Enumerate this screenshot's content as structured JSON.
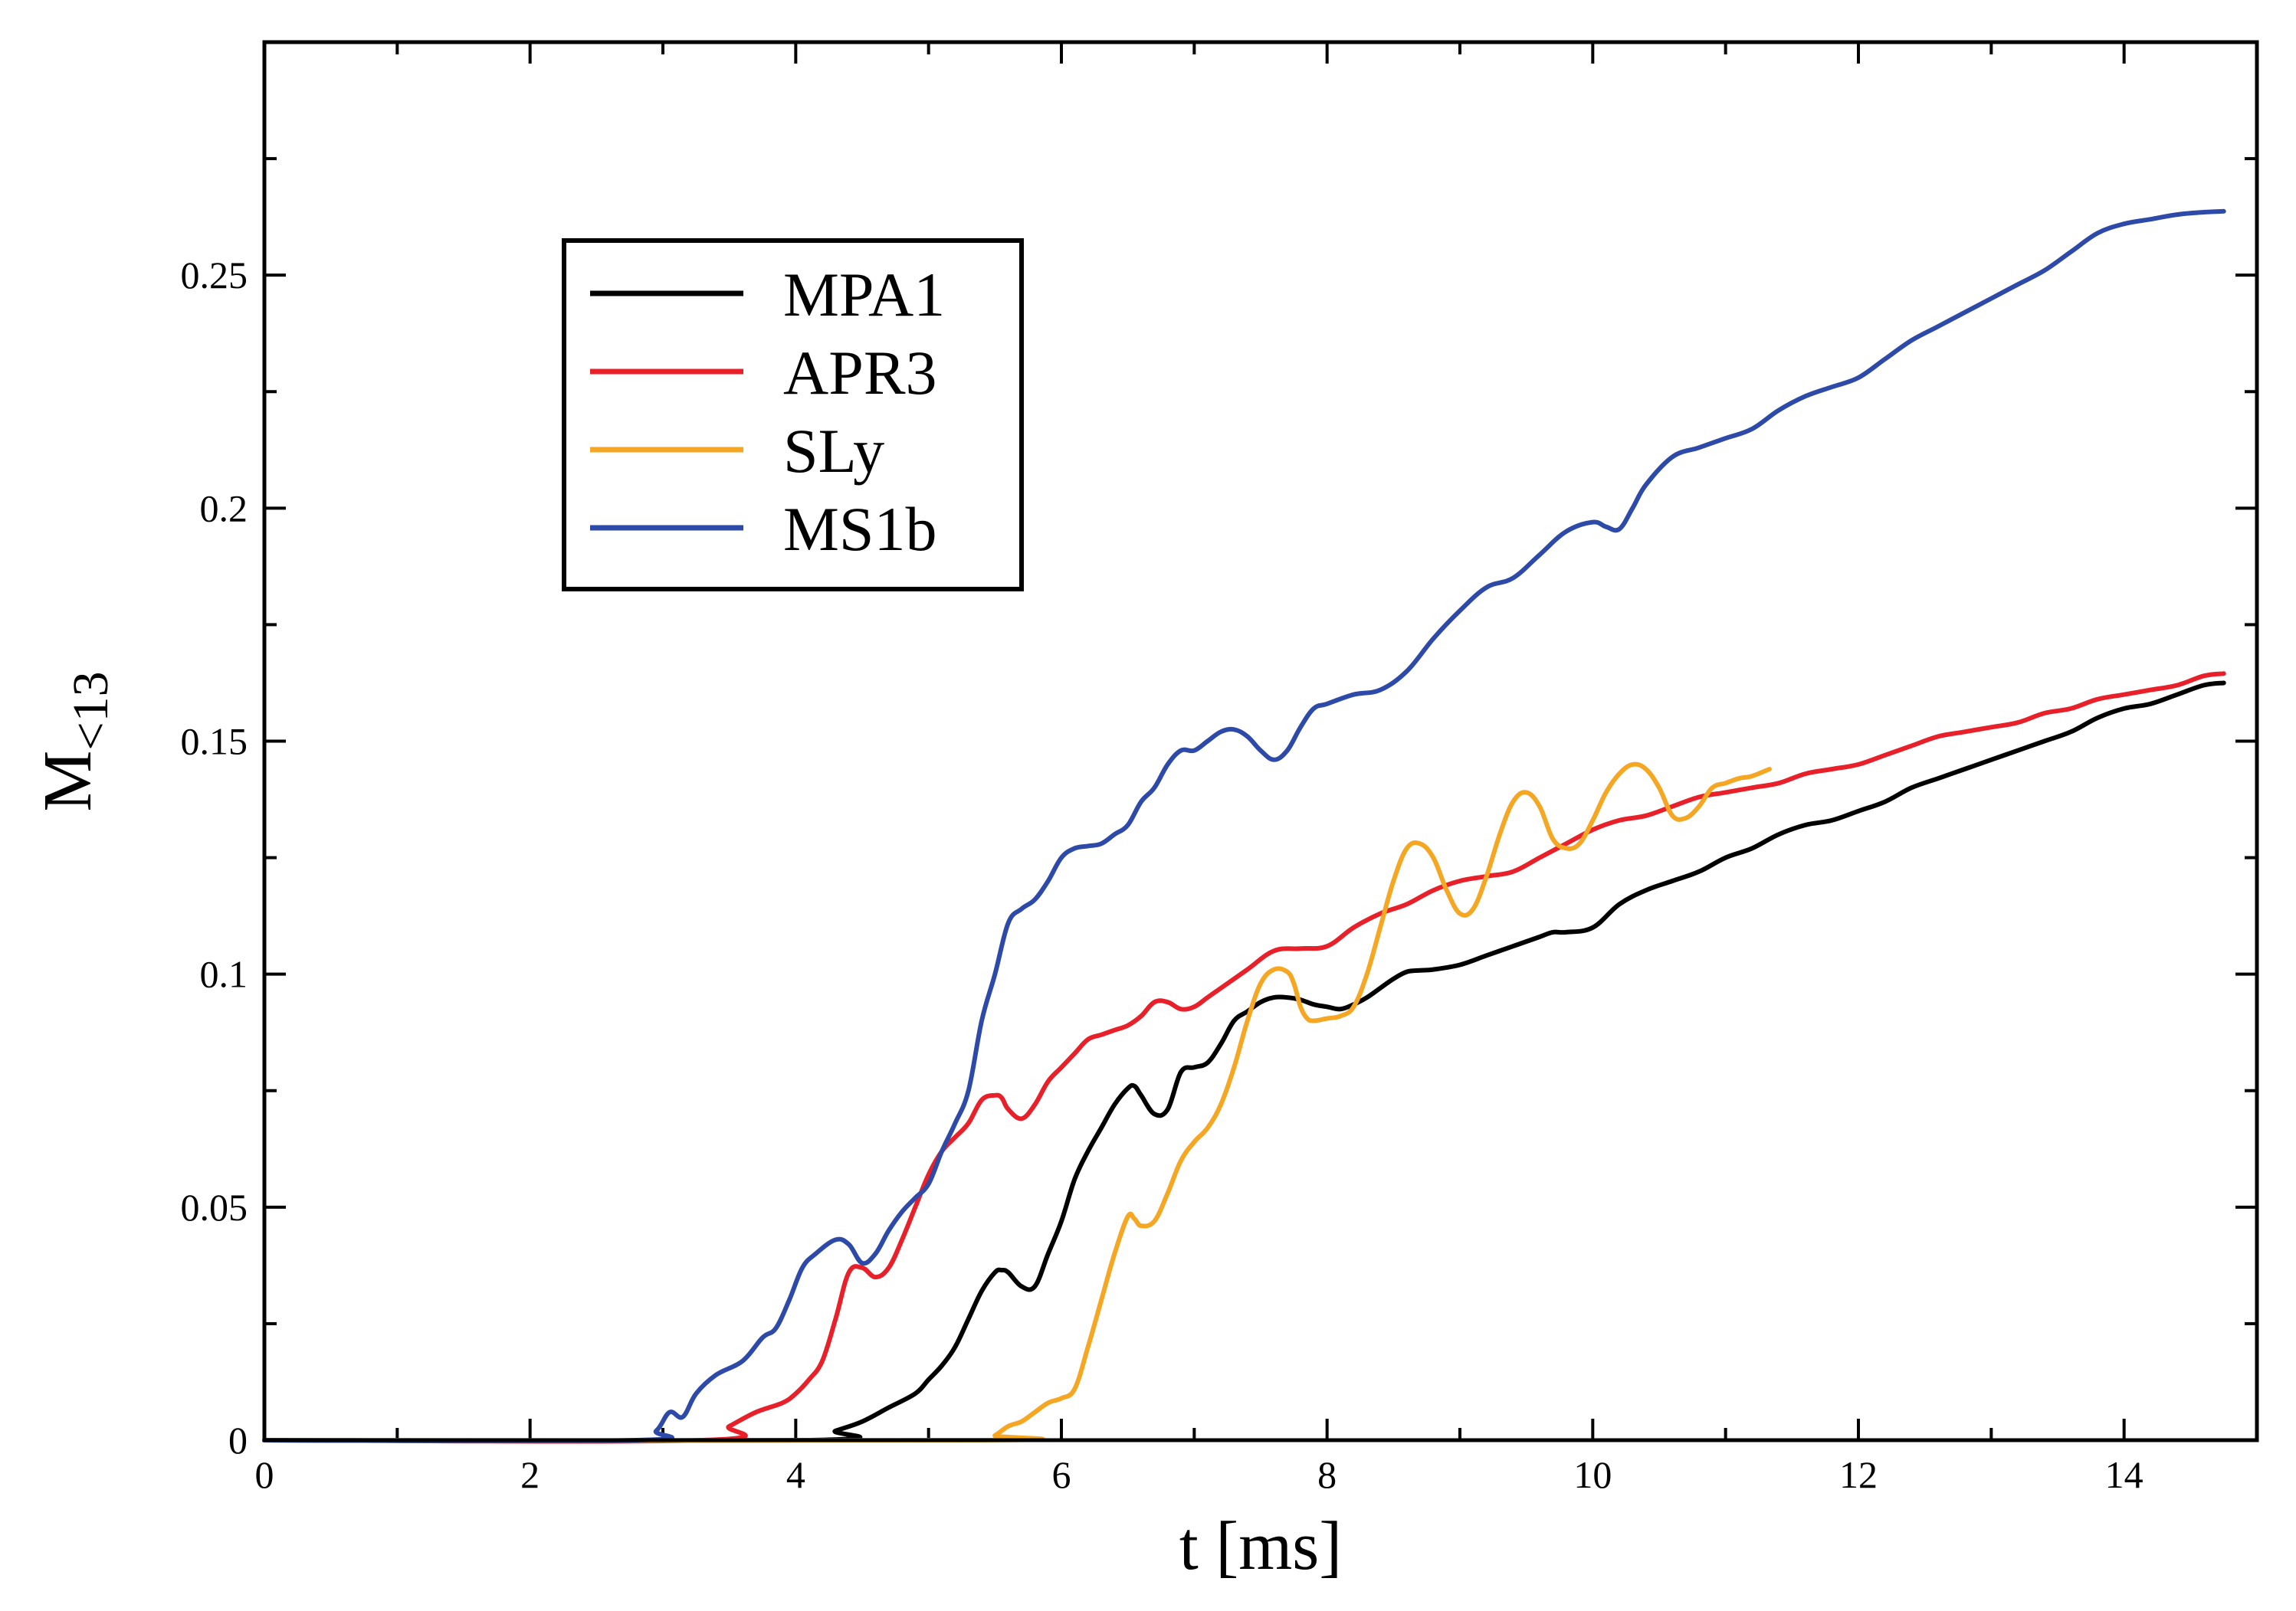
{
  "chart_data": {
    "type": "line",
    "title": "",
    "xlabel": "t [ms]",
    "ylabel": "M",
    "ylabel_subscript": "<13",
    "xlim": [
      0,
      15
    ],
    "ylim": [
      0,
      0.3
    ],
    "xticks": [
      0,
      2,
      4,
      6,
      8,
      10,
      12,
      14
    ],
    "xtick_labels": [
      "0",
      "2",
      "4",
      "6",
      "8",
      "10",
      "12",
      "14"
    ],
    "yticks": [
      0,
      0.05,
      0.1,
      0.15,
      0.2,
      0.25
    ],
    "ytick_labels": [
      "0",
      "0.05",
      "0.1",
      "0.15",
      "0.2",
      "0.25"
    ],
    "grid": false,
    "legend_position": "top-left",
    "series": [
      {
        "name": "MPA1",
        "color": "#000000",
        "x": [
          0,
          4.1,
          4.3,
          4.5,
          4.7,
          4.9,
          5.0,
          5.1,
          5.2,
          5.3,
          5.4,
          5.5,
          5.55,
          5.6,
          5.7,
          5.8,
          5.9,
          6.0,
          6.1,
          6.2,
          6.3,
          6.4,
          6.5,
          6.55,
          6.6,
          6.7,
          6.8,
          6.9,
          7.0,
          7.1,
          7.2,
          7.3,
          7.4,
          7.5,
          7.6,
          7.7,
          7.8,
          7.9,
          8.0,
          8.1,
          8.2,
          8.3,
          8.4,
          8.5,
          8.6,
          8.7,
          8.8,
          9.0,
          9.2,
          9.4,
          9.6,
          9.7,
          9.8,
          10.0,
          10.2,
          10.4,
          10.6,
          10.8,
          11.0,
          11.2,
          11.4,
          11.6,
          11.8,
          12.0,
          12.2,
          12.4,
          12.6,
          12.8,
          13.0,
          13.2,
          13.4,
          13.6,
          13.8,
          14.0,
          14.2,
          14.4,
          14.6,
          14.75
        ],
        "y": [
          0,
          0,
          0.002,
          0.004,
          0.007,
          0.01,
          0.013,
          0.016,
          0.02,
          0.026,
          0.032,
          0.036,
          0.0365,
          0.036,
          0.033,
          0.033,
          0.04,
          0.047,
          0.056,
          0.062,
          0.067,
          0.072,
          0.0755,
          0.076,
          0.074,
          0.07,
          0.071,
          0.079,
          0.08,
          0.081,
          0.085,
          0.09,
          0.092,
          0.094,
          0.095,
          0.095,
          0.0945,
          0.0935,
          0.093,
          0.0925,
          0.0935,
          0.095,
          0.097,
          0.099,
          0.1005,
          0.1008,
          0.101,
          0.102,
          0.104,
          0.106,
          0.108,
          0.109,
          0.109,
          0.11,
          0.115,
          0.118,
          0.12,
          0.122,
          0.125,
          0.127,
          0.13,
          0.132,
          0.133,
          0.135,
          0.137,
          0.14,
          0.142,
          0.144,
          0.146,
          0.148,
          0.15,
          0.152,
          0.155,
          0.157,
          0.158,
          0.16,
          0.162,
          0.1625
        ]
      },
      {
        "name": "APR3",
        "color": "#e8202a",
        "x": [
          0,
          3.3,
          3.5,
          3.7,
          3.9,
          4.0,
          4.1,
          4.2,
          4.3,
          4.4,
          4.5,
          4.6,
          4.7,
          4.8,
          4.9,
          5.0,
          5.1,
          5.2,
          5.3,
          5.4,
          5.5,
          5.55,
          5.6,
          5.7,
          5.8,
          5.9,
          6.0,
          6.1,
          6.2,
          6.3,
          6.4,
          6.5,
          6.6,
          6.7,
          6.8,
          6.9,
          7.0,
          7.1,
          7.2,
          7.4,
          7.6,
          7.8,
          8.0,
          8.2,
          8.4,
          8.6,
          8.8,
          9.0,
          9.2,
          9.4,
          9.6,
          9.8,
          10.0,
          10.2,
          10.4,
          10.6,
          10.8,
          11.0,
          11.2,
          11.4,
          11.6,
          11.8,
          12.0,
          12.2,
          12.4,
          12.6,
          12.8,
          13.0,
          13.2,
          13.4,
          13.6,
          13.8,
          14.0,
          14.2,
          14.4,
          14.6,
          14.75
        ],
        "y": [
          0,
          0,
          0.003,
          0.006,
          0.008,
          0.01,
          0.013,
          0.017,
          0.026,
          0.036,
          0.037,
          0.035,
          0.037,
          0.043,
          0.05,
          0.057,
          0.062,
          0.065,
          0.068,
          0.073,
          0.074,
          0.0735,
          0.071,
          0.069,
          0.072,
          0.077,
          0.08,
          0.083,
          0.086,
          0.087,
          0.088,
          0.089,
          0.091,
          0.094,
          0.094,
          0.0925,
          0.093,
          0.095,
          0.097,
          0.101,
          0.105,
          0.1055,
          0.106,
          0.11,
          0.113,
          0.115,
          0.118,
          0.12,
          0.121,
          0.122,
          0.125,
          0.128,
          0.131,
          0.133,
          0.134,
          0.136,
          0.138,
          0.139,
          0.14,
          0.141,
          0.143,
          0.144,
          0.145,
          0.147,
          0.149,
          0.151,
          0.152,
          0.153,
          0.154,
          0.156,
          0.157,
          0.159,
          0.16,
          0.161,
          0.162,
          0.164,
          0.1645
        ]
      },
      {
        "name": "SLy",
        "color": "#f5a623",
        "x": [
          0,
          5.4,
          5.5,
          5.6,
          5.7,
          5.8,
          5.9,
          6.0,
          6.1,
          6.2,
          6.3,
          6.4,
          6.5,
          6.55,
          6.6,
          6.7,
          6.8,
          6.9,
          7.0,
          7.1,
          7.2,
          7.3,
          7.4,
          7.5,
          7.6,
          7.7,
          7.75,
          7.8,
          7.85,
          7.9,
          8.0,
          8.1,
          8.2,
          8.3,
          8.4,
          8.5,
          8.6,
          8.7,
          8.8,
          8.9,
          9.0,
          9.1,
          9.2,
          9.3,
          9.4,
          9.5,
          9.6,
          9.7,
          9.8,
          9.9,
          10.0,
          10.1,
          10.2,
          10.3,
          10.4,
          10.5,
          10.6,
          10.7,
          10.8,
          10.9,
          11.0,
          11.1,
          11.2,
          11.33
        ],
        "y": [
          0,
          0,
          0.001,
          0.003,
          0.004,
          0.006,
          0.008,
          0.009,
          0.011,
          0.02,
          0.03,
          0.04,
          0.048,
          0.0475,
          0.046,
          0.047,
          0.053,
          0.06,
          0.064,
          0.067,
          0.072,
          0.08,
          0.09,
          0.098,
          0.101,
          0.1005,
          0.098,
          0.093,
          0.0905,
          0.09,
          0.0905,
          0.091,
          0.093,
          0.1,
          0.11,
          0.12,
          0.127,
          0.128,
          0.125,
          0.118,
          0.113,
          0.114,
          0.121,
          0.13,
          0.137,
          0.139,
          0.136,
          0.129,
          0.127,
          0.128,
          0.133,
          0.139,
          0.143,
          0.145,
          0.144,
          0.14,
          0.134,
          0.1335,
          0.136,
          0.14,
          0.141,
          0.142,
          0.1425,
          0.144
        ]
      },
      {
        "name": "MS1b",
        "color": "#2e4aa8",
        "x": [
          0,
          2.8,
          2.95,
          3.05,
          3.15,
          3.25,
          3.4,
          3.6,
          3.75,
          3.85,
          3.95,
          4.05,
          4.15,
          4.3,
          4.4,
          4.5,
          4.6,
          4.7,
          4.8,
          4.9,
          5.0,
          5.1,
          5.2,
          5.3,
          5.4,
          5.5,
          5.6,
          5.7,
          5.8,
          5.9,
          6.0,
          6.1,
          6.2,
          6.3,
          6.4,
          6.5,
          6.6,
          6.7,
          6.8,
          6.9,
          7.0,
          7.1,
          7.2,
          7.3,
          7.4,
          7.5,
          7.6,
          7.7,
          7.8,
          7.9,
          8.0,
          8.2,
          8.4,
          8.6,
          8.8,
          9.0,
          9.2,
          9.4,
          9.6,
          9.8,
          10.0,
          10.1,
          10.2,
          10.3,
          10.4,
          10.6,
          10.8,
          11.0,
          11.2,
          11.4,
          11.6,
          11.8,
          12.0,
          12.2,
          12.4,
          12.6,
          12.8,
          13.0,
          13.2,
          13.4,
          13.6,
          13.8,
          14.0,
          14.2,
          14.4,
          14.6,
          14.75
        ],
        "y": [
          0,
          0,
          0.002,
          0.006,
          0.005,
          0.01,
          0.014,
          0.017,
          0.022,
          0.024,
          0.03,
          0.037,
          0.04,
          0.043,
          0.042,
          0.038,
          0.04,
          0.045,
          0.049,
          0.052,
          0.055,
          0.062,
          0.068,
          0.075,
          0.09,
          0.1,
          0.111,
          0.114,
          0.116,
          0.12,
          0.125,
          0.127,
          0.1275,
          0.128,
          0.13,
          0.132,
          0.137,
          0.14,
          0.145,
          0.148,
          0.148,
          0.15,
          0.152,
          0.1525,
          0.151,
          0.148,
          0.146,
          0.148,
          0.153,
          0.157,
          0.158,
          0.16,
          0.161,
          0.165,
          0.172,
          0.178,
          0.183,
          0.185,
          0.19,
          0.195,
          0.197,
          0.196,
          0.1955,
          0.2,
          0.205,
          0.211,
          0.213,
          0.215,
          0.217,
          0.221,
          0.224,
          0.226,
          0.228,
          0.232,
          0.236,
          0.239,
          0.242,
          0.245,
          0.248,
          0.251,
          0.255,
          0.259,
          0.261,
          0.262,
          0.263,
          0.2635,
          0.2637
        ]
      }
    ]
  }
}
